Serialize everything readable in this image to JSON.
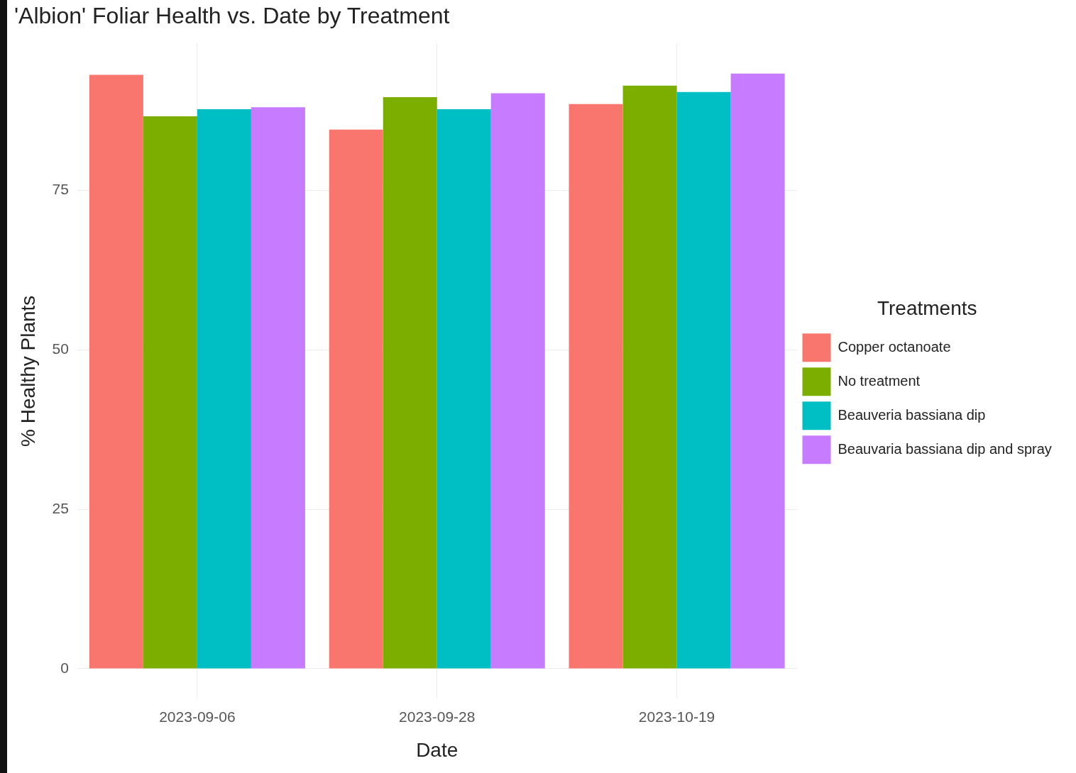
{
  "chart_data": {
    "type": "bar",
    "title": "'Albion' Foliar Health vs. Date by Treatment",
    "xlabel": "Date",
    "ylabel": "% Healthy Plants",
    "legend_title": "Treatments",
    "categories": [
      "2023-09-06",
      "2023-09-28",
      "2023-10-19"
    ],
    "series": [
      {
        "name": "Copper octanoate",
        "color": "#f8766d",
        "values": [
          93.1,
          84.5,
          88.5
        ]
      },
      {
        "name": "No treatment",
        "color": "#7cae00",
        "values": [
          86.6,
          89.6,
          91.4
        ]
      },
      {
        "name": "Beauveria bassiana dip",
        "color": "#00bfc4",
        "values": [
          87.7,
          87.7,
          90.4
        ]
      },
      {
        "name": "Beauvaria bassiana dip and spray",
        "color": "#c77cff",
        "values": [
          88.0,
          90.2,
          93.3
        ]
      }
    ],
    "ylim": [
      -4.7,
      98
    ],
    "yticks": [
      0,
      25,
      50,
      75
    ],
    "grid": true,
    "legend": "right"
  }
}
